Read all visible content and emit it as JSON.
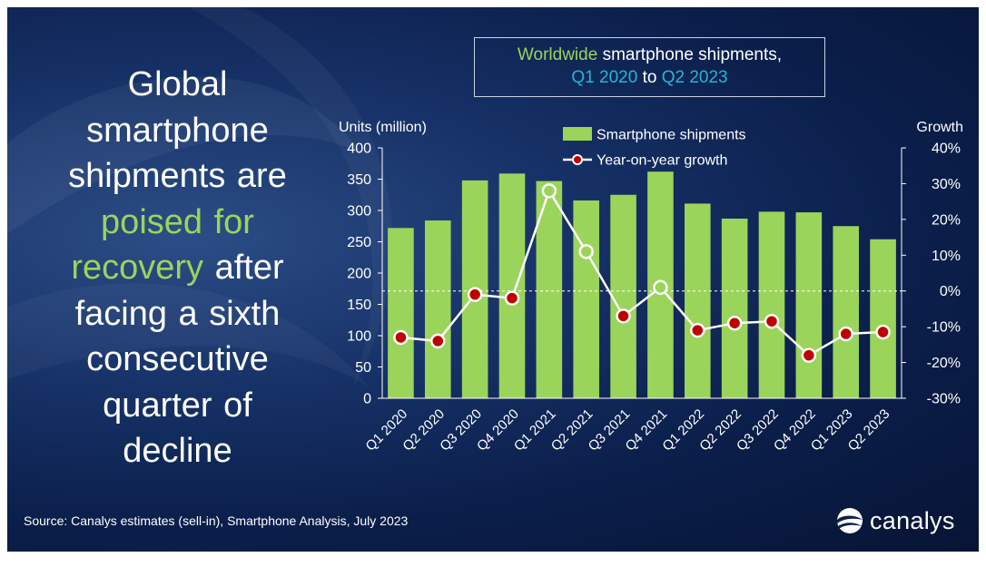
{
  "headline": {
    "part1": "Global smartphone shipments are",
    "highlight": "poised for recovery",
    "part2": "after facing a sixth consecutive quarter of decline"
  },
  "title": {
    "part1": "Worldwide",
    "part2": "smartphone shipments,",
    "part3": "Q1 2020",
    "part4": "to",
    "part5": "Q2 2023"
  },
  "source": "Source: Canalys estimates (sell-in), Smartphone Analysis, July 2023",
  "logo": {
    "text": "canalys",
    "icon": "canalys-logo-icon"
  },
  "colors": {
    "background": "#0f2757",
    "bar": "#9bd45a",
    "line": "#ffffff",
    "marker_fill": "#c00000",
    "highlight_green": "#9bd45a",
    "highlight_cyan": "#27b4d6",
    "text": "#ffffff"
  },
  "chart_data": {
    "type": "bar",
    "categories": [
      "Q1 2020",
      "Q2 2020",
      "Q3 2020",
      "Q4 2020",
      "Q1 2021",
      "Q2 2021",
      "Q3 2021",
      "Q4 2021",
      "Q1 2022",
      "Q2 2022",
      "Q3 2022",
      "Q4 2022",
      "Q1 2023",
      "Q2 2023"
    ],
    "series": [
      {
        "name": "Smartphone shipments",
        "type": "bar",
        "axis": "left",
        "values": [
          272,
          284,
          348,
          359,
          347,
          316,
          325,
          362,
          311,
          287,
          298,
          297,
          275,
          254
        ]
      },
      {
        "name": "Year-on-year growth",
        "type": "line",
        "axis": "right",
        "values": [
          -13,
          -14,
          -1,
          -2,
          28,
          11,
          -7,
          1,
          -11,
          -9,
          -8.5,
          -18,
          -12,
          -11.5
        ],
        "hollow_markers": [
          false,
          false,
          false,
          false,
          true,
          true,
          false,
          true,
          false,
          false,
          false,
          false,
          false,
          false
        ]
      }
    ],
    "ylabel_left": "Units (million)",
    "ylabel_right": "Growth",
    "ylim_left": [
      0,
      400
    ],
    "yticks_left": [
      "0",
      "50",
      "100",
      "150",
      "200",
      "250",
      "300",
      "350",
      "400"
    ],
    "ylim_right": [
      -30,
      40
    ],
    "yticks_right": [
      "-30%",
      "-20%",
      "-10%",
      "0%",
      "10%",
      "20%",
      "30%",
      "40%"
    ],
    "zero_growth_reference_line": "dashed",
    "grid": false,
    "legend_position": "top-center"
  }
}
